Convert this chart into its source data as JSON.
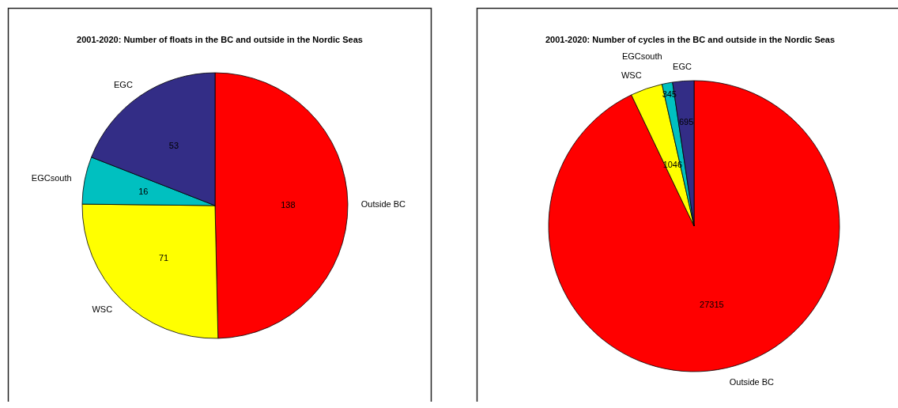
{
  "chart_data": [
    {
      "type": "pie",
      "title": "2001-2020: Number of floats in the BC and outside in the Nordic Seas",
      "categories": [
        "Outside BC",
        "WSC",
        "EGCsouth",
        "EGC"
      ],
      "values": [
        138,
        71,
        16,
        53
      ],
      "colors": [
        "#ff0000",
        "#ffff00",
        "#00c0c0",
        "#332d86"
      ],
      "data_labels": true
    },
    {
      "type": "pie",
      "title": "2001-2020: Number of cycles in the BC and outside in the Nordic Seas",
      "categories": [
        "Outside BC",
        "WSC",
        "EGCsouth",
        "EGC"
      ],
      "values": [
        27315,
        1046,
        345,
        695
      ],
      "colors": [
        "#ff0000",
        "#ffff00",
        "#00c0c0",
        "#332d86"
      ],
      "data_labels": true
    }
  ]
}
